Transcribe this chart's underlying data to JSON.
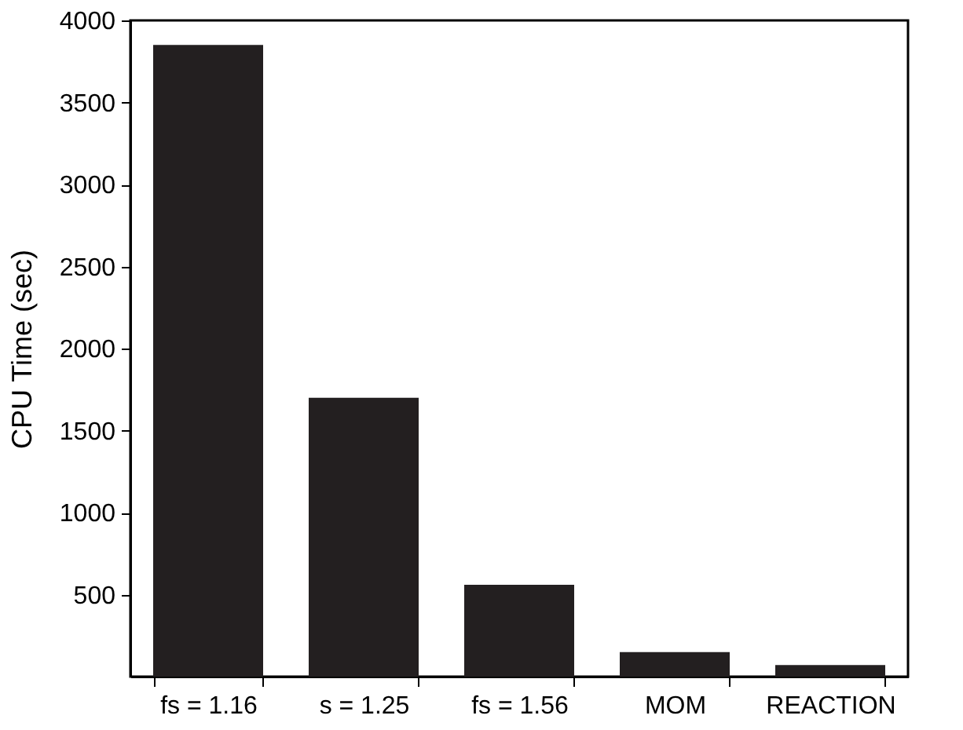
{
  "chart_data": {
    "type": "bar",
    "ylabel": "CPU Time (sec)",
    "categories": [
      "fs = 1.16",
      "s = 1.25",
      "fs = 1.56",
      "MOM",
      "REACTION"
    ],
    "values": [
      3850,
      1700,
      560,
      150,
      70
    ],
    "color": "#231f20",
    "ylim": [
      0,
      4000
    ],
    "yticks": [
      500,
      1000,
      1500,
      2000,
      2500,
      3000,
      3500,
      4000
    ],
    "grid": false
  }
}
